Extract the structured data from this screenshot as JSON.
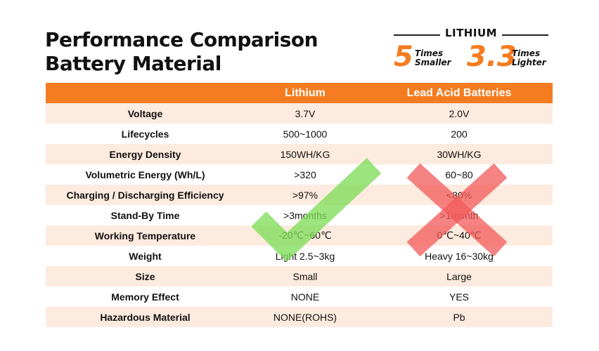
{
  "title": {
    "line1": "Performance Comparison",
    "line2": "Battery Material"
  },
  "badge": {
    "name": "LITHIUM",
    "stat1_value": "5",
    "stat1_line1": "Times",
    "stat1_line2": "Smaller",
    "stat2_value": "3.3",
    "stat2_line1": "Times",
    "stat2_line2": "Lighter",
    "accent": "#f57c20"
  },
  "table": {
    "headers": [
      "",
      "Lithium",
      "Lead Acid Batteries"
    ],
    "rows": [
      {
        "label": "Voltage",
        "lithium": "3.7V",
        "lead": "2.0V"
      },
      {
        "label": "Lifecycles",
        "lithium": "500~1000",
        "lead": "200"
      },
      {
        "label": "Energy Density",
        "lithium": "150WH/KG",
        "lead": "30WH/KG"
      },
      {
        "label": "Volumetric Energy (Wh/L)",
        "lithium": ">320",
        "lead": "60~80"
      },
      {
        "label": "Charging / Discharging Efficiency",
        "lithium": ">97%",
        "lead": "<80%"
      },
      {
        "label": "Stand-By Time",
        "lithium": ">3months",
        "lead": ">1month"
      },
      {
        "label": "Working Temperature",
        "lithium": "-20℃~60℃",
        "lead": "0℃~40℃"
      },
      {
        "label": "Weight",
        "lithium": "Light 2.5~3kg",
        "lead": "Heavy 16~30kg"
      },
      {
        "label": "Size",
        "lithium": "Small",
        "lead": "Large"
      },
      {
        "label": "Memory Effect",
        "lithium": "NONE",
        "lead": "YES"
      },
      {
        "label": "Hazardous Material",
        "lithium": "NONE(ROHS)",
        "lead": "Pb"
      }
    ]
  },
  "marks": {
    "check_icon": "check-icon",
    "cross_icon": "cross-icon",
    "check_color": "#7fdc5a",
    "cross_color": "#f25a5a"
  }
}
